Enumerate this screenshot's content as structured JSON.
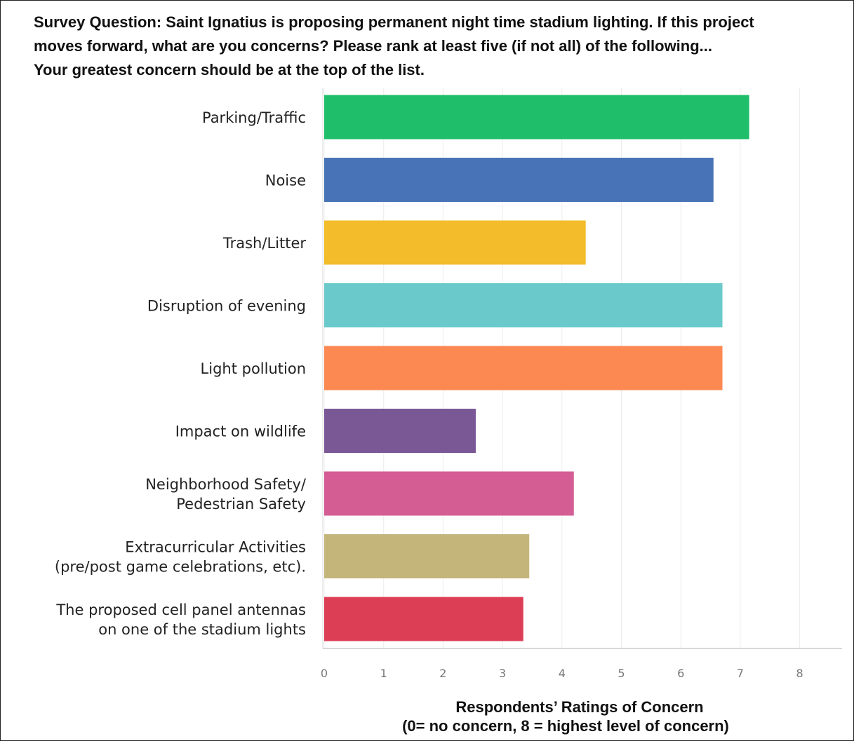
{
  "chart_data": {
    "type": "bar",
    "orientation": "horizontal",
    "title_lines": [
      "Survey Question: Saint Ignatius is proposing permanent night time stadium lighting. If this project",
      "moves forward, what are you concerns? Please rank at least five (if not all) of the following...",
      "Your greatest concern should be at the top of the list."
    ],
    "categories": [
      [
        "Parking/Traffic"
      ],
      [
        "Noise"
      ],
      [
        "Trash/Litter"
      ],
      [
        "Disruption of evening"
      ],
      [
        "Light pollution"
      ],
      [
        "Impact on wildlife"
      ],
      [
        "Neighborhood Safety/",
        "Pedestrian Safety"
      ],
      [
        "Extracurricular Activities",
        "(pre/post game celebrations, etc)."
      ],
      [
        "The proposed cell panel antennas",
        "on one of the stadium lights"
      ]
    ],
    "values": [
      7.15,
      6.55,
      4.4,
      6.7,
      6.7,
      2.55,
      4.2,
      3.45,
      3.35
    ],
    "colors": [
      "#1fbe6a",
      "#4874b7",
      "#f2bc2a",
      "#6ac9ca",
      "#fd8952",
      "#7a5896",
      "#d45d94",
      "#c4b57b",
      "#dc3f55"
    ],
    "xlim": [
      0,
      8
    ],
    "xticks": [
      "0",
      "1",
      "2",
      "3",
      "4",
      "5",
      "6",
      "7",
      "8"
    ],
    "xlabel_lines": [
      "Respondents’ Ratings of Concern",
      "(0= no concern, 8 = highest level of concern)"
    ],
    "grid": true
  }
}
